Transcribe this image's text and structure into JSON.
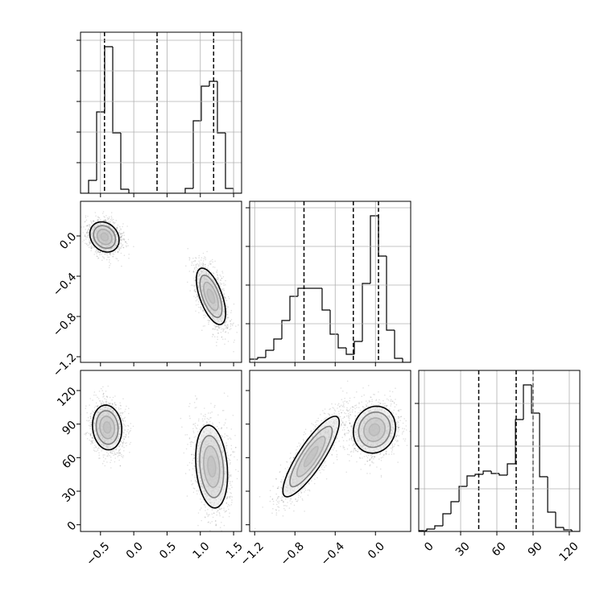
{
  "chart_data": [
    {
      "type": "histogram",
      "bins": [
        -0.8,
        -0.679,
        -0.558,
        -0.437,
        -0.316,
        -0.195,
        -0.074,
        0.047,
        0.168,
        0.289,
        0.41,
        0.531,
        0.652,
        0.773,
        0.894,
        1.015,
        1.136,
        1.257,
        1.378,
        1.499,
        1.62
      ],
      "counts": [
        0,
        16,
        101,
        182,
        75,
        5,
        0,
        0,
        0,
        0,
        0,
        0,
        0,
        6,
        90,
        133,
        139,
        75,
        6,
        0
      ],
      "quantiles": [
        -0.44,
        0.35,
        1.2
      ],
      "xlim": [
        -0.8,
        1.62
      ],
      "ylim": [
        0,
        200
      ],
      "xticks": [
        {
          "value": -0.5,
          "label": "−0.5"
        },
        {
          "value": 0,
          "label": "0.0"
        },
        0.5,
        {
          "value": 1,
          "label": "1.0"
        },
        1.5
      ],
      "yticks": [
        38,
        76,
        114,
        152,
        190
      ],
      "grid": true,
      "xtick_labels": false,
      "ytick_labels": false
    },
    {
      "type": "contour",
      "xlim": [
        -0.8,
        1.62
      ],
      "ylim": [
        -1.256,
        0.344
      ],
      "xticks": [
        {
          "value": -0.5,
          "label": "−0.5"
        },
        {
          "value": 0,
          "label": "0.0"
        },
        0.5,
        {
          "value": 1,
          "label": "1.0"
        },
        1.5
      ],
      "yticks": [
        {
          "value": 0,
          "label": "0.0"
        },
        {
          "value": -0.4,
          "label": "−0.4"
        },
        {
          "value": -0.8,
          "label": "−0.8"
        },
        {
          "value": -1.2,
          "label": "−1.2"
        }
      ],
      "contour_levels": [
        0.5,
        1,
        1.5,
        2
      ],
      "clusters": [
        {
          "center": [
            -0.44,
            -0.01
          ],
          "sx": 0.11,
          "sy": 0.075,
          "rho": -0.2
        },
        {
          "center": [
            1.16,
            -0.6
          ],
          "sx": 0.11,
          "sy": 0.14,
          "rho": -0.6
        }
      ],
      "grid": false,
      "xtick_labels": false,
      "ytick_labels": true
    },
    {
      "type": "histogram",
      "bins": [
        -1.25,
        -1.17,
        -1.09,
        -1.01,
        -0.93,
        -0.85,
        -0.77,
        -0.69,
        -0.61,
        -0.53,
        -0.45,
        -0.37,
        -0.29,
        -0.21,
        -0.13,
        -0.05,
        0.03,
        0.11,
        0.19,
        0.27,
        0.35
      ],
      "counts": [
        4,
        6,
        15,
        29,
        52,
        82,
        92,
        92,
        92,
        65,
        35,
        18,
        10,
        26,
        98,
        182,
        132,
        40,
        5,
        0
      ],
      "quantiles": [
        -0.71,
        -0.22,
        0.03
      ],
      "xlim": [
        -1.25,
        0.35
      ],
      "ylim": [
        0,
        200
      ],
      "xticks": [
        {
          "value": -1.2,
          "label": "−1.2"
        },
        {
          "value": -0.8,
          "label": "−0.8"
        },
        {
          "value": -0.4,
          "label": "−0.4"
        },
        {
          "value": 0,
          "label": "0.0"
        }
      ],
      "yticks": [
        48,
        96,
        144,
        192
      ],
      "grid": true,
      "xtick_labels": false,
      "ytick_labels": false
    },
    {
      "type": "contour",
      "xlim": [
        -0.8,
        1.62
      ],
      "ylim": [
        -6,
        138
      ],
      "xticks": [
        {
          "value": -0.5,
          "label": "−0.5"
        },
        {
          "value": 0,
          "label": "0.0"
        },
        0.5,
        {
          "value": 1,
          "label": "1.0"
        },
        1.5
      ],
      "yticks": [
        0,
        30,
        60,
        90,
        120
      ],
      "contour_levels": [
        0.5,
        1,
        1.5,
        2
      ],
      "clusters": [
        {
          "center": [
            -0.4,
            87
          ],
          "sx": 0.11,
          "sy": 10,
          "rho": -0.1
        },
        {
          "center": [
            1.17,
            52
          ],
          "sx": 0.12,
          "sy": 18.5,
          "rho": -0.2
        }
      ],
      "grid": false,
      "xtick_labels": true,
      "ytick_labels": true
    },
    {
      "type": "contour",
      "xlim": [
        -1.25,
        0.35
      ],
      "ylim": [
        -6,
        138
      ],
      "xticks": [
        {
          "value": -1.2,
          "label": "−1.2"
        },
        {
          "value": -0.8,
          "label": "−0.8"
        },
        {
          "value": -0.4,
          "label": "−0.4"
        },
        {
          "value": 0,
          "label": "0.0"
        }
      ],
      "yticks": [
        0,
        30,
        60,
        90,
        120
      ],
      "contour_levels": [
        0.5,
        1,
        1.5,
        2
      ],
      "clusters": [
        {
          "center": [
            -0.01,
            85
          ],
          "sx": 0.105,
          "sy": 10.5,
          "rho": 0.1
        },
        {
          "center": [
            -0.64,
            61
          ],
          "sx": 0.14,
          "sy": 18,
          "rho": 0.85
        }
      ],
      "grid": false,
      "xtick_labels": true,
      "ytick_labels": false
    },
    {
      "type": "histogram",
      "bins": [
        -4.7,
        2.0,
        8.6,
        15.3,
        22.0,
        28.7,
        35.3,
        42.0,
        48.7,
        55.4,
        62.0,
        68.7,
        75.4,
        82.0,
        88.7,
        95.4,
        102.1,
        108.7,
        115.4,
        122.1,
        128.7
      ],
      "counts": [
        1,
        3,
        7,
        22,
        37,
        56,
        69,
        71,
        75,
        72,
        70,
        84,
        139,
        182,
        147,
        68,
        24,
        5,
        2,
        0
      ],
      "quantiles": [
        45,
        76,
        90
      ],
      "xlim": [
        -4.7,
        128.7
      ],
      "ylim": [
        0,
        200
      ],
      "xticks": [
        0,
        30,
        60,
        90,
        120
      ],
      "yticks": [
        53,
        106,
        159
      ],
      "grid": true,
      "xtick_labels": true,
      "ytick_labels": false
    }
  ]
}
